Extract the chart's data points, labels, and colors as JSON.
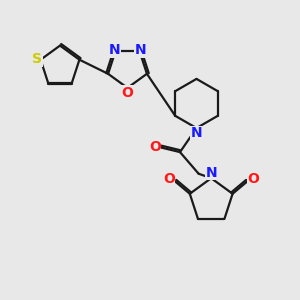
{
  "bg_color": "#e8e8e8",
  "bond_color": "#1a1a1a",
  "N_color": "#1a1aff",
  "O_color": "#ff1a1a",
  "S_color": "#cccc00",
  "line_width": 1.6,
  "font_size": 10,
  "fig_size": [
    3.0,
    3.0
  ],
  "dpi": 100,
  "xlim": [
    0,
    10
  ],
  "ylim": [
    0,
    10
  ]
}
